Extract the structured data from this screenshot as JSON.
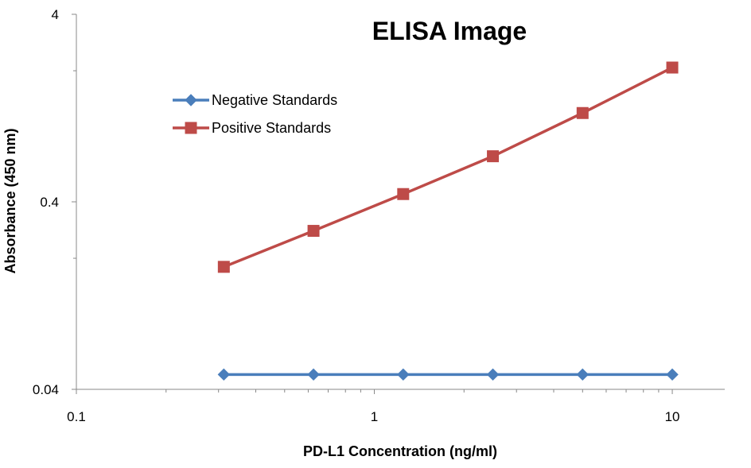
{
  "chart_data": {
    "type": "line",
    "title": "ELISA Image",
    "xlabel": "PD-L1 Concentration (ng/ml)",
    "ylabel": "Absorbance (450 nm)",
    "x_scale": "log",
    "y_scale": "log",
    "xlim": [
      0.1,
      15
    ],
    "ylim": [
      0.04,
      4
    ],
    "x_tick_labels": [
      "0.1",
      "1",
      "10"
    ],
    "y_tick_labels": [
      "0.04",
      "0.4",
      "4"
    ],
    "x": [
      0.3125,
      0.625,
      1.25,
      2.5,
      5,
      10
    ],
    "legend_position": "upper-left",
    "grid": false,
    "series": [
      {
        "name": "Negative Standards",
        "color": "#4a7ebb",
        "marker": "diamond",
        "values": [
          0.048,
          0.048,
          0.048,
          0.048,
          0.048,
          0.048
        ]
      },
      {
        "name": "Positive Standards",
        "color": "#be4b48",
        "marker": "square",
        "values": [
          0.18,
          0.28,
          0.44,
          0.7,
          1.19,
          2.08
        ]
      }
    ]
  }
}
